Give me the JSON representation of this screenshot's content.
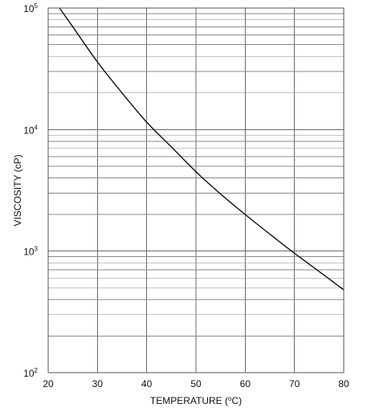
{
  "chart_data": {
    "type": "line",
    "title": "",
    "xlabel": "",
    "ylabel": "VISCOSITY (cP)",
    "xlabel_parts": {
      "prefix": "TEMPERATURE (",
      "superscript": "o",
      "suffix": "C)"
    },
    "xlim": [
      20,
      80
    ],
    "ylim": [
      100,
      100000
    ],
    "yscale": "log",
    "grid": true,
    "x_ticks": [
      20,
      30,
      40,
      50,
      60,
      70,
      80
    ],
    "y_ticks": [
      {
        "value": 100,
        "base": "10",
        "exponent": "2"
      },
      {
        "value": 1000,
        "base": "10",
        "exponent": "3"
      },
      {
        "value": 10000,
        "base": "10",
        "exponent": "4"
      },
      {
        "value": 100000,
        "base": "10",
        "exponent": "5"
      }
    ],
    "series": [
      {
        "x": [
          22.3,
          25,
          30,
          35,
          40,
          45,
          50,
          55,
          60,
          65,
          70,
          75,
          80
        ],
        "values": [
          100000,
          70000,
          36000,
          20000,
          11500,
          7200,
          4500,
          2950,
          2000,
          1380,
          960,
          680,
          480
        ]
      }
    ]
  }
}
